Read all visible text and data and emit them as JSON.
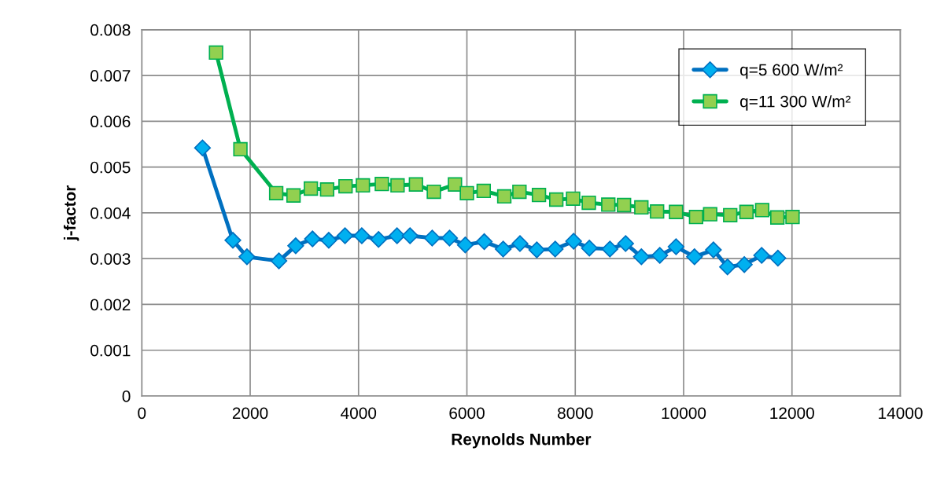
{
  "chart_data": {
    "type": "line",
    "xlabel": "Reynolds Number",
    "ylabel": "j-factor",
    "xlim": [
      0,
      14000
    ],
    "xticks": [
      0,
      2000,
      4000,
      6000,
      8000,
      10000,
      12000,
      14000
    ],
    "ylim": [
      0,
      0.008
    ],
    "yticks": [
      0,
      0.001,
      0.002,
      0.003,
      0.004,
      0.005,
      0.006,
      0.007,
      0.008
    ],
    "grid": true,
    "legend": "top right",
    "line_style": "solid",
    "series": [
      {
        "name": "q=5 600 W/m²",
        "color": "#0070c0",
        "marker": "diamond",
        "x": [
          1120,
          1680,
          1940,
          2530,
          2840,
          3150,
          3450,
          3750,
          4060,
          4370,
          4710,
          4950,
          5360,
          5680,
          5970,
          6320,
          6670,
          6980,
          7290,
          7630,
          7970,
          8260,
          8640,
          8930,
          9220,
          9560,
          9860,
          10200,
          10550,
          10810,
          11120,
          11440,
          11740
        ],
        "values": [
          0.00542,
          0.0034,
          0.00304,
          0.00295,
          0.00328,
          0.00343,
          0.0034,
          0.0035,
          0.0035,
          0.00342,
          0.0035,
          0.0035,
          0.00345,
          0.00345,
          0.0033,
          0.00337,
          0.00321,
          0.00333,
          0.00319,
          0.00321,
          0.00338,
          0.00323,
          0.00321,
          0.00333,
          0.00304,
          0.00307,
          0.00326,
          0.00304,
          0.00319,
          0.00282,
          0.00287,
          0.00307,
          0.00301
        ]
      },
      {
        "name": "q=11 300 W/m²",
        "color": "#00b050",
        "marker": "square",
        "x": [
          1370,
          1820,
          2480,
          2800,
          3120,
          3420,
          3760,
          4080,
          4430,
          4720,
          5060,
          5390,
          5780,
          6000,
          6310,
          6690,
          6970,
          7330,
          7650,
          7960,
          8250,
          8610,
          8900,
          9220,
          9510,
          9860,
          10230,
          10490,
          10860,
          11160,
          11450,
          11730,
          12010
        ],
        "values": [
          0.0075,
          0.00539,
          0.00443,
          0.00438,
          0.00453,
          0.00451,
          0.00458,
          0.0046,
          0.00463,
          0.0046,
          0.00462,
          0.00446,
          0.00462,
          0.00443,
          0.00448,
          0.00436,
          0.00446,
          0.00439,
          0.00429,
          0.00431,
          0.00422,
          0.00418,
          0.00417,
          0.00412,
          0.00403,
          0.00402,
          0.00391,
          0.00397,
          0.00395,
          0.00402,
          0.00406,
          0.0039,
          0.00391
        ]
      }
    ]
  }
}
